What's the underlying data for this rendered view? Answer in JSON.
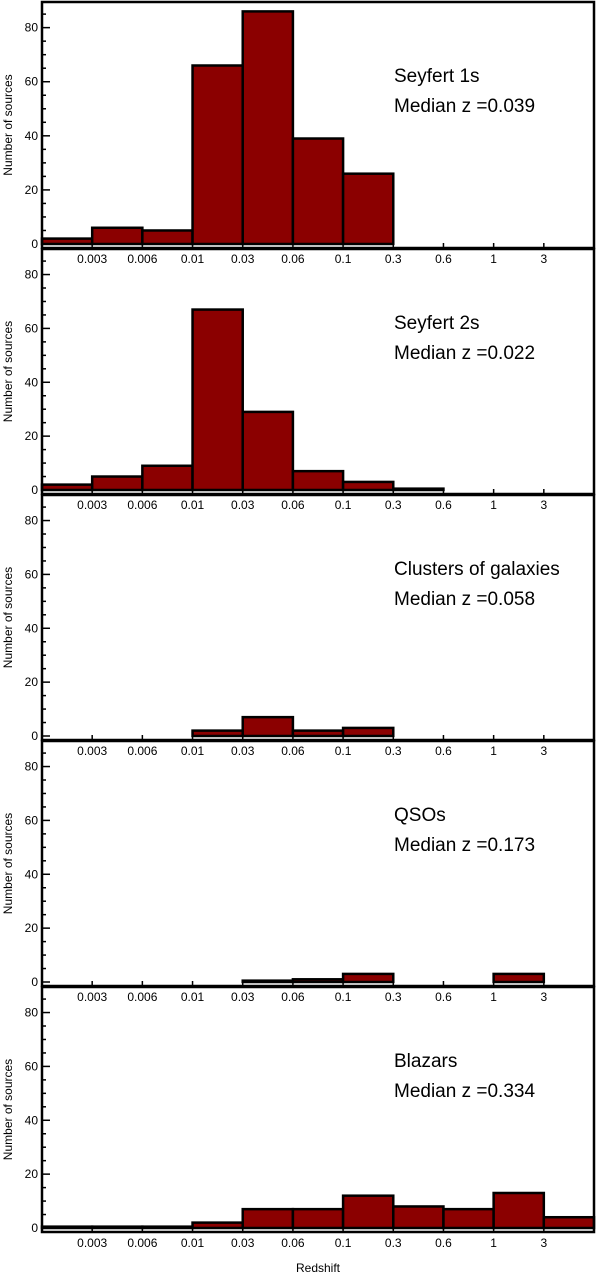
{
  "figure": {
    "xlabel": "Redshift"
  },
  "chart_data": [
    {
      "type": "bar",
      "annotation_lines": [
        "Seyfert 1s",
        "Median z =0.039"
      ],
      "ylabel": "Number of sources",
      "ylim": [
        0,
        88
      ],
      "yticks": [
        "0",
        "20",
        "40",
        "60",
        "80"
      ],
      "categories": [
        "<0.003",
        "0.003-0.006",
        "0.006-0.01",
        "0.01-0.03",
        "0.03-0.06",
        "0.06-0.1",
        "0.1-0.3",
        "0.3-0.6",
        "0.6-1",
        "1-3",
        ">3"
      ],
      "xtick_labels": [
        "0.003",
        "0.006",
        "0.01",
        "0.03",
        "0.06",
        "0.1",
        "0.3",
        "0.6",
        "1",
        "3"
      ],
      "values": [
        2,
        6,
        5,
        66,
        86,
        39,
        26,
        0,
        0,
        0,
        0
      ]
    },
    {
      "type": "bar",
      "annotation_lines": [
        "Seyfert 2s",
        "Median z =0.022"
      ],
      "ylabel": "Number of sources",
      "ylim": [
        0,
        88
      ],
      "yticks": [
        "0",
        "20",
        "40",
        "60",
        "80"
      ],
      "categories": [
        "<0.003",
        "0.003-0.006",
        "0.006-0.01",
        "0.01-0.03",
        "0.03-0.06",
        "0.06-0.1",
        "0.1-0.3",
        "0.3-0.6",
        "0.6-1",
        "1-3",
        ">3"
      ],
      "xtick_labels": [
        "0.003",
        "0.006",
        "0.01",
        "0.03",
        "0.06",
        "0.1",
        "0.3",
        "0.6",
        "1",
        "3"
      ],
      "values": [
        2,
        5,
        9,
        67,
        29,
        7,
        3,
        0.5,
        0,
        0,
        0
      ]
    },
    {
      "type": "bar",
      "annotation_lines": [
        "Clusters of galaxies",
        "Median z =0.058"
      ],
      "ylabel": "Number of sources",
      "ylim": [
        0,
        88
      ],
      "yticks": [
        "0",
        "20",
        "40",
        "60",
        "80"
      ],
      "categories": [
        "<0.003",
        "0.003-0.006",
        "0.006-0.01",
        "0.01-0.03",
        "0.03-0.06",
        "0.06-0.1",
        "0.1-0.3",
        "0.3-0.6",
        "0.6-1",
        "1-3",
        ">3"
      ],
      "xtick_labels": [
        "0.003",
        "0.006",
        "0.01",
        "0.03",
        "0.06",
        "0.1",
        "0.3",
        "0.6",
        "1",
        "3"
      ],
      "values": [
        0,
        0,
        0,
        2,
        7,
        2,
        3,
        0,
        0,
        0,
        0
      ]
    },
    {
      "type": "bar",
      "annotation_lines": [
        "QSOs",
        "Median z =0.173"
      ],
      "ylabel": "Number of sources",
      "ylim": [
        0,
        88
      ],
      "yticks": [
        "0",
        "20",
        "40",
        "60",
        "80"
      ],
      "categories": [
        "<0.003",
        "0.003-0.006",
        "0.006-0.01",
        "0.01-0.03",
        "0.03-0.06",
        "0.06-0.1",
        "0.1-0.3",
        "0.3-0.6",
        "0.6-1",
        "1-3",
        ">3"
      ],
      "xtick_labels": [
        "0.003",
        "0.006",
        "0.01",
        "0.03",
        "0.06",
        "0.1",
        "0.3",
        "0.6",
        "1",
        "3"
      ],
      "values": [
        0,
        0,
        0,
        0,
        0.5,
        1,
        3,
        0,
        0,
        3,
        0
      ]
    },
    {
      "type": "bar",
      "annotation_lines": [
        "Blazars",
        "Median z =0.334"
      ],
      "ylabel": "Number of sources",
      "ylim": [
        0,
        88
      ],
      "yticks": [
        "0",
        "20",
        "40",
        "60",
        "80"
      ],
      "categories": [
        "<0.003",
        "0.003-0.006",
        "0.006-0.01",
        "0.01-0.03",
        "0.03-0.06",
        "0.06-0.1",
        "0.1-0.3",
        "0.3-0.6",
        "0.6-1",
        "1-3",
        ">3"
      ],
      "xtick_labels": [
        "0.003",
        "0.006",
        "0.01",
        "0.03",
        "0.06",
        "0.1",
        "0.3",
        "0.6",
        "1",
        "3"
      ],
      "values": [
        0.5,
        0.5,
        0.5,
        2,
        7,
        7,
        12,
        8,
        7,
        13,
        4
      ]
    }
  ],
  "colors": {
    "bar_fill": "#8b0000",
    "bar_stroke": "#000000"
  }
}
